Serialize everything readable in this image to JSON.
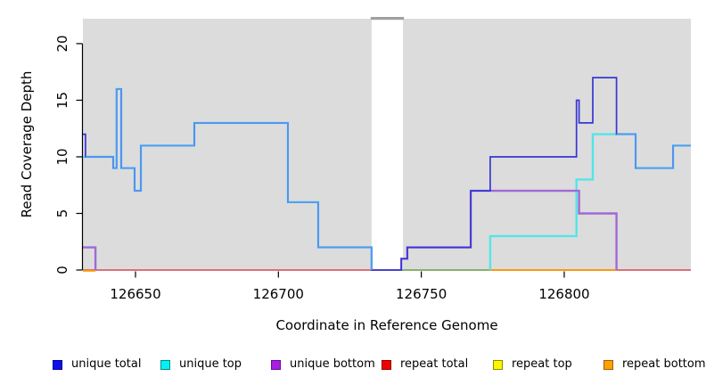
{
  "chart_data": {
    "type": "line",
    "subtype": "step-coverage-plot",
    "title": "",
    "xlabel": "Coordinate in Reference Genome",
    "ylabel": "Read Coverage Depth",
    "xlim": [
      126631.6,
      126844.3
    ],
    "ylim": [
      0,
      22.2
    ],
    "x_ticks": [
      126650,
      126700,
      126750,
      126800
    ],
    "y_ticks": [
      0,
      5,
      10,
      15,
      20
    ],
    "grid": false,
    "legend_position": "bottom",
    "page_bg": "#ffffff",
    "plot_bg": "#dcdcdc",
    "axis_color": "#000000",
    "masked_region": {
      "x1": 126732.6,
      "x2": 126743.6,
      "fill": "#ffffff",
      "cap_fill": "#a0a0a0"
    },
    "series": [
      {
        "name": "repeat top",
        "color": "#f0e800",
        "width": 1.4,
        "points": [
          [
            126631.6,
            0
          ],
          [
            126844.3,
            0
          ]
        ]
      },
      {
        "name": "repeat total",
        "color": "#d6497b",
        "width": 1.4,
        "points": [
          [
            126631.6,
            0
          ],
          [
            126844.3,
            0
          ]
        ]
      },
      {
        "name": "baseline overlap unique-top + repeat-top (green)",
        "color": "#68ba6a",
        "width": 1.6,
        "points": [
          [
            126743,
            0
          ],
          [
            126774.1,
            0
          ]
        ]
      },
      {
        "name": "repeat bottom",
        "color": "#ff9800",
        "width": 1.8,
        "points": [
          [
            126631.6,
            -0.07
          ],
          [
            126636,
            -0.07
          ],
          null,
          [
            126774.1,
            0
          ],
          [
            126818.3,
            0
          ]
        ]
      },
      {
        "name": "unique top",
        "color": "#55e4e8",
        "width": 2.4,
        "points": [
          [
            126631.6,
            10
          ],
          [
            126642.2,
            10
          ],
          [
            126642.2,
            9
          ],
          [
            126643.4,
            9
          ],
          [
            126643.4,
            16
          ],
          [
            126645,
            16
          ],
          [
            126645,
            9
          ],
          [
            126649.7,
            9
          ],
          [
            126649.7,
            7
          ],
          [
            126651.9,
            7
          ],
          [
            126651.9,
            11
          ],
          [
            126670.6,
            11
          ],
          [
            126670.6,
            13
          ],
          [
            126703.3,
            13
          ],
          [
            126703.3,
            6
          ],
          [
            126713.9,
            6
          ],
          [
            126713.9,
            2
          ],
          [
            126732.6,
            2
          ],
          [
            126732.6,
            0
          ],
          null,
          [
            126774.1,
            0
          ],
          [
            126774.1,
            3
          ],
          [
            126804.3,
            3
          ],
          [
            126804.3,
            8
          ],
          [
            126810,
            8
          ],
          [
            126810,
            12
          ],
          [
            126825,
            12
          ],
          [
            126825,
            9
          ],
          [
            126838.1,
            9
          ],
          [
            126838.1,
            11
          ],
          [
            126844.3,
            11
          ]
        ]
      },
      {
        "name": "unique bottom",
        "color": "#a069d6",
        "width": 2.4,
        "points": [
          [
            126631.6,
            2
          ],
          [
            126636,
            2
          ],
          [
            126636,
            0
          ],
          null,
          [
            126743,
            0
          ],
          [
            126743,
            1
          ],
          [
            126745.1,
            1
          ],
          [
            126745.1,
            2
          ],
          [
            126767.3,
            2
          ],
          [
            126767.3,
            7
          ],
          [
            126805.2,
            7
          ],
          [
            126805.2,
            5
          ],
          [
            126818.3,
            5
          ],
          [
            126818.3,
            0
          ]
        ]
      },
      {
        "name": "unique total",
        "color": "#3636d4",
        "width": 1.7,
        "points": [
          [
            126631.6,
            12
          ],
          [
            126632.5,
            12
          ],
          [
            126632.5,
            10
          ],
          [
            126642.2,
            10
          ],
          [
            126642.2,
            9
          ],
          [
            126643.4,
            9
          ],
          [
            126643.4,
            16
          ],
          [
            126645,
            16
          ],
          [
            126645,
            9
          ],
          [
            126649.7,
            9
          ],
          [
            126649.7,
            7
          ],
          [
            126651.9,
            7
          ],
          [
            126651.9,
            11
          ],
          [
            126670.6,
            11
          ],
          [
            126670.6,
            13
          ],
          [
            126703.3,
            13
          ],
          [
            126703.3,
            6
          ],
          [
            126713.9,
            6
          ],
          [
            126713.9,
            2
          ],
          [
            126732.6,
            2
          ],
          [
            126732.6,
            0
          ],
          [
            126743,
            0
          ],
          [
            126743,
            1
          ],
          [
            126745.1,
            1
          ],
          [
            126745.1,
            2
          ],
          [
            126767.3,
            2
          ],
          [
            126767.3,
            7
          ],
          [
            126774.1,
            7
          ],
          [
            126774.1,
            10
          ],
          [
            126804.3,
            10
          ],
          [
            126804.3,
            15
          ],
          [
            126805.2,
            15
          ],
          [
            126805.2,
            13
          ],
          [
            126810,
            13
          ],
          [
            126810,
            17
          ],
          [
            126818.3,
            17
          ],
          [
            126818.3,
            12
          ],
          [
            126825,
            12
          ],
          [
            126825,
            9
          ],
          [
            126838.1,
            9
          ],
          [
            126838.1,
            11
          ],
          [
            126844.3,
            11
          ]
        ]
      },
      {
        "name": "unique total overlap-with-top highlight (light blue)",
        "color": "#5b95f2",
        "width": 1.7,
        "points": [
          [
            126632.5,
            10
          ],
          [
            126642.2,
            10
          ],
          [
            126642.2,
            9
          ],
          [
            126643.4,
            9
          ],
          [
            126643.4,
            16
          ],
          [
            126645,
            16
          ],
          [
            126645,
            9
          ],
          [
            126649.7,
            9
          ],
          [
            126649.7,
            7
          ],
          [
            126651.9,
            7
          ],
          [
            126651.9,
            11
          ],
          [
            126670.6,
            11
          ],
          [
            126670.6,
            13
          ],
          [
            126703.3,
            13
          ],
          [
            126703.3,
            6
          ],
          [
            126713.9,
            6
          ],
          [
            126713.9,
            2
          ],
          [
            126732.6,
            2
          ],
          [
            126732.6,
            0
          ],
          null,
          [
            126818.3,
            12
          ],
          [
            126825,
            12
          ],
          [
            126825,
            9
          ],
          [
            126838.1,
            9
          ],
          [
            126838.1,
            11
          ],
          [
            126844.3,
            11
          ]
        ]
      }
    ],
    "legend": [
      {
        "label": "unique total",
        "fill": "#0f0fe8",
        "border": "#0000a0"
      },
      {
        "label": "unique top",
        "fill": "#00f2f2",
        "border": "#008b8b"
      },
      {
        "label": "unique bottom",
        "fill": "#a81fe0",
        "border": "#6a0aa0"
      },
      {
        "label": "repeat total",
        "fill": "#f20000",
        "border": "#8b0000"
      },
      {
        "label": "repeat top",
        "fill": "#fff500",
        "border": "#8b8b00"
      },
      {
        "label": "repeat bottom",
        "fill": "#ffa200",
        "border": "#a05a00"
      }
    ]
  }
}
